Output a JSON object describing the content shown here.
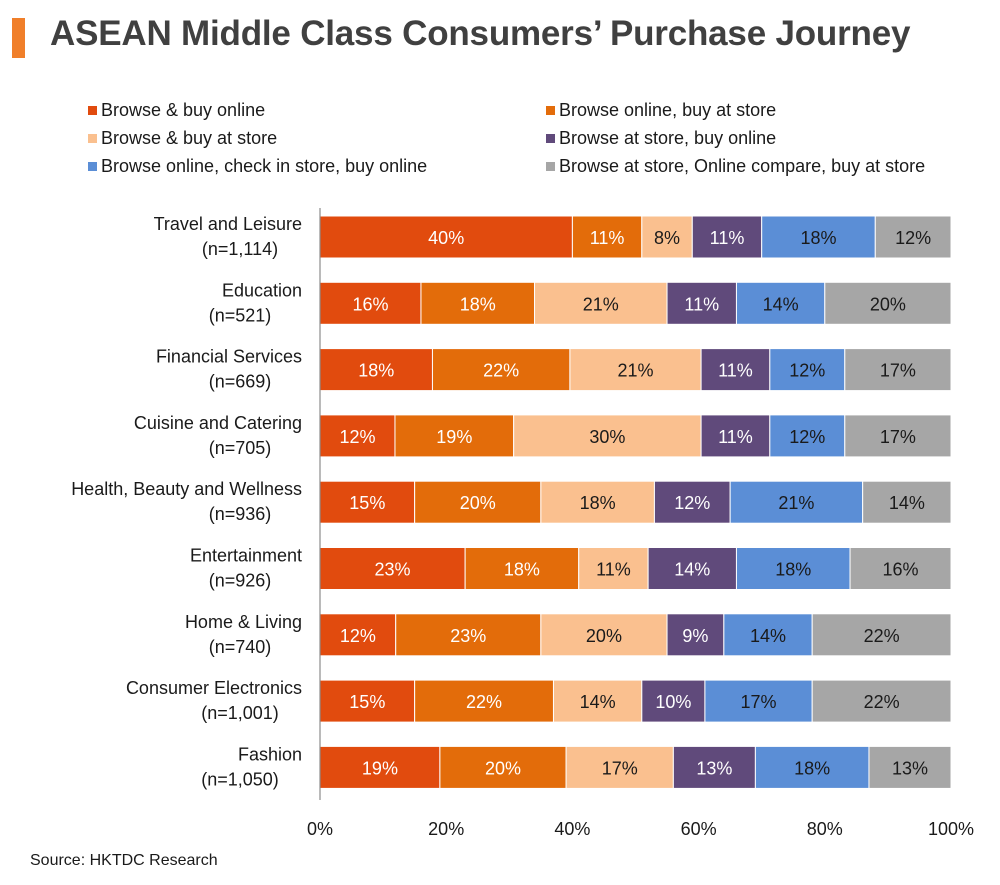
{
  "title": "ASEAN Middle Class Consumers’ Purchase Journey",
  "source": "Source: HKTDC Research",
  "chart_data": {
    "type": "bar",
    "orientation": "horizontal",
    "stacked": "percent",
    "categories": [
      {
        "name": "Travel and Leisure",
        "n": "(n=1,114)"
      },
      {
        "name": "Education",
        "n": "(n=521)"
      },
      {
        "name": "Financial Services",
        "n": "(n=669)"
      },
      {
        "name": "Cuisine and Catering",
        "n": "(n=705)"
      },
      {
        "name": "Health, Beauty and Wellness",
        "n": "(n=936)"
      },
      {
        "name": "Entertainment",
        "n": "(n=926)"
      },
      {
        "name": "Home & Living",
        "n": "(n=740)"
      },
      {
        "name": "Consumer Electronics",
        "n": "(n=1,001)"
      },
      {
        "name": "Fashion",
        "n": "(n=1,050)"
      }
    ],
    "series": [
      {
        "name": "Browse & buy online",
        "color": "#e14b0e",
        "label_color": "#ffffff",
        "values": [
          40,
          16,
          18,
          12,
          15,
          23,
          12,
          15,
          19
        ]
      },
      {
        "name": "Browse online, buy at store",
        "color": "#e36c0a",
        "label_color": "#ffffff",
        "values": [
          11,
          18,
          22,
          19,
          20,
          18,
          23,
          22,
          20
        ]
      },
      {
        "name": "Browse & buy at store",
        "color": "#fac08f",
        "label_color": "#1a1a1a",
        "values": [
          8,
          21,
          21,
          30,
          18,
          11,
          20,
          14,
          17
        ]
      },
      {
        "name": "Browse at store, buy online",
        "color": "#604a7b",
        "label_color": "#ffffff",
        "values": [
          11,
          11,
          11,
          11,
          12,
          14,
          9,
          10,
          13
        ]
      },
      {
        "name": "Browse online, check in store, buy online",
        "color": "#5b8ed6",
        "label_color": "#1a1a1a",
        "values": [
          18,
          14,
          12,
          12,
          21,
          18,
          14,
          17,
          18
        ]
      },
      {
        "name": "Browse at store, Online compare, buy at store",
        "color": "#a6a6a6",
        "label_color": "#1a1a1a",
        "values": [
          12,
          20,
          17,
          17,
          14,
          16,
          22,
          22,
          13
        ]
      }
    ],
    "x_ticks": [
      "0%",
      "20%",
      "40%",
      "60%",
      "80%",
      "100%"
    ],
    "xlim": [
      0,
      100
    ],
    "grid": false,
    "legend_position": "top"
  }
}
